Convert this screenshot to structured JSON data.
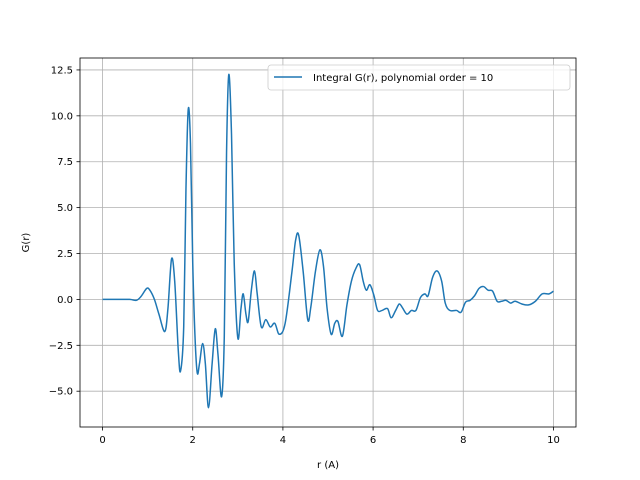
{
  "chart_data": {
    "type": "line",
    "title": "",
    "xlabel": "r (A)",
    "ylabel": "G(r)",
    "xlim": [
      -0.5,
      10.5
    ],
    "ylim": [
      -6.95,
      13.15
    ],
    "xticks": [
      0,
      2,
      4,
      6,
      8,
      10
    ],
    "xtick_labels": [
      "0",
      "2",
      "4",
      "6",
      "8",
      "10"
    ],
    "yticks": [
      -5.0,
      -2.5,
      0.0,
      2.5,
      5.0,
      7.5,
      10.0,
      12.5
    ],
    "ytick_labels": [
      "−5.0",
      "−2.5",
      "0.0",
      "2.5",
      "5.0",
      "7.5",
      "10.0",
      "12.5"
    ],
    "grid": true,
    "legend": {
      "position": "top-right",
      "entries": [
        "Integral G(r), polynomial order = 10"
      ]
    },
    "series": [
      {
        "name": "Integral G(r), polynomial order = 10",
        "color": "#1f77b4",
        "points": [
          [
            0.0,
            0.0
          ],
          [
            0.3,
            0.0
          ],
          [
            0.6,
            0.0
          ],
          [
            0.75,
            -0.05
          ],
          [
            0.85,
            0.15
          ],
          [
            0.98,
            0.6
          ],
          [
            1.05,
            0.5
          ],
          [
            1.15,
            0.0
          ],
          [
            1.25,
            -0.8
          ],
          [
            1.38,
            -1.75
          ],
          [
            1.45,
            -0.5
          ],
          [
            1.53,
            2.2
          ],
          [
            1.6,
            1.0
          ],
          [
            1.68,
            -2.8
          ],
          [
            1.73,
            -3.9
          ],
          [
            1.8,
            -1.5
          ],
          [
            1.85,
            6.0
          ],
          [
            1.9,
            10.35
          ],
          [
            1.95,
            8.5
          ],
          [
            2.0,
            2.0
          ],
          [
            2.05,
            -2.0
          ],
          [
            2.1,
            -4.0
          ],
          [
            2.15,
            -3.5
          ],
          [
            2.22,
            -2.4
          ],
          [
            2.28,
            -3.5
          ],
          [
            2.35,
            -5.9
          ],
          [
            2.43,
            -3.5
          ],
          [
            2.5,
            -1.6
          ],
          [
            2.56,
            -3.0
          ],
          [
            2.64,
            -5.3
          ],
          [
            2.7,
            -2.0
          ],
          [
            2.75,
            8.0
          ],
          [
            2.8,
            12.25
          ],
          [
            2.86,
            9.0
          ],
          [
            2.92,
            2.0
          ],
          [
            3.0,
            -2.1
          ],
          [
            3.07,
            -0.5
          ],
          [
            3.12,
            0.3
          ],
          [
            3.18,
            -0.8
          ],
          [
            3.23,
            -1.2
          ],
          [
            3.3,
            0.5
          ],
          [
            3.37,
            1.55
          ],
          [
            3.43,
            0.3
          ],
          [
            3.52,
            -1.5
          ],
          [
            3.62,
            -1.1
          ],
          [
            3.72,
            -1.5
          ],
          [
            3.82,
            -1.3
          ],
          [
            3.92,
            -1.9
          ],
          [
            4.05,
            -1.3
          ],
          [
            4.2,
            1.5
          ],
          [
            4.28,
            3.2
          ],
          [
            4.35,
            3.5
          ],
          [
            4.45,
            1.5
          ],
          [
            4.55,
            -1.1
          ],
          [
            4.62,
            -0.4
          ],
          [
            4.72,
            1.5
          ],
          [
            4.82,
            2.7
          ],
          [
            4.9,
            1.8
          ],
          [
            4.98,
            -0.5
          ],
          [
            5.07,
            -1.9
          ],
          [
            5.15,
            -1.3
          ],
          [
            5.22,
            -1.2
          ],
          [
            5.32,
            -2.0
          ],
          [
            5.42,
            -0.3
          ],
          [
            5.52,
            1.0
          ],
          [
            5.62,
            1.7
          ],
          [
            5.7,
            1.9
          ],
          [
            5.78,
            1.0
          ],
          [
            5.85,
            0.5
          ],
          [
            5.93,
            0.8
          ],
          [
            6.02,
            0.2
          ],
          [
            6.1,
            -0.6
          ],
          [
            6.2,
            -0.6
          ],
          [
            6.32,
            -0.5
          ],
          [
            6.4,
            -1.0
          ],
          [
            6.5,
            -0.6
          ],
          [
            6.58,
            -0.25
          ],
          [
            6.65,
            -0.45
          ],
          [
            6.75,
            -0.8
          ],
          [
            6.85,
            -0.6
          ],
          [
            6.95,
            -0.6
          ],
          [
            7.05,
            0.1
          ],
          [
            7.15,
            0.3
          ],
          [
            7.22,
            0.2
          ],
          [
            7.32,
            1.2
          ],
          [
            7.42,
            1.55
          ],
          [
            7.52,
            1.0
          ],
          [
            7.6,
            -0.2
          ],
          [
            7.7,
            -0.6
          ],
          [
            7.85,
            -0.6
          ],
          [
            7.95,
            -0.7
          ],
          [
            8.05,
            -0.15
          ],
          [
            8.15,
            -0.05
          ],
          [
            8.25,
            0.2
          ],
          [
            8.35,
            0.6
          ],
          [
            8.45,
            0.7
          ],
          [
            8.55,
            0.5
          ],
          [
            8.65,
            0.45
          ],
          [
            8.75,
            -0.1
          ],
          [
            8.85,
            -0.1
          ],
          [
            8.95,
            -0.05
          ],
          [
            9.05,
            -0.2
          ],
          [
            9.15,
            -0.1
          ],
          [
            9.3,
            -0.25
          ],
          [
            9.45,
            -0.3
          ],
          [
            9.6,
            -0.1
          ],
          [
            9.75,
            0.3
          ],
          [
            9.9,
            0.3
          ],
          [
            10.0,
            0.45
          ]
        ]
      }
    ]
  }
}
